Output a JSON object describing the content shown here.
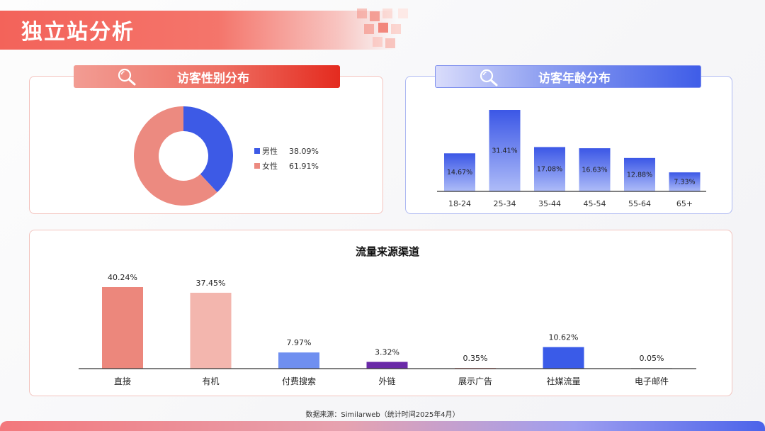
{
  "page": {
    "title": "独立站分析",
    "source_note": "数据来源：Similarweb（统计时间2025年4月）"
  },
  "colors": {
    "accent_red": "#f3635a",
    "accent_blue": "#3f5de8",
    "male": "#3d5ae6",
    "female": "#ec8a80"
  },
  "sections": {
    "gender_title": "访客性别分布",
    "age_title": "访客年龄分布",
    "traffic_title": "流量来源渠道"
  },
  "icons": {
    "header_icon": "search-icon"
  },
  "chart_data": [
    {
      "id": "gender",
      "type": "pie",
      "donut": true,
      "title": "",
      "series": [
        {
          "name": "男性",
          "value": 38.09,
          "label": "38.09%",
          "color": "#3d5ae6"
        },
        {
          "name": "女性",
          "value": 61.91,
          "label": "61.91%",
          "color": "#ec8a80"
        }
      ],
      "legend": "right"
    },
    {
      "id": "age",
      "type": "bar",
      "title": "",
      "categories": [
        "18-24",
        "25-34",
        "35-44",
        "45-54",
        "55-64",
        "65+"
      ],
      "values": [
        14.67,
        31.41,
        17.08,
        16.63,
        12.88,
        7.33
      ],
      "labels": [
        "14.67%",
        "31.41%",
        "17.08%",
        "16.63%",
        "12.88%",
        "7.33%"
      ],
      "ylim": [
        0,
        31.41
      ],
      "grid": false,
      "xlabel": "",
      "ylabel": ""
    },
    {
      "id": "traffic",
      "type": "bar",
      "title": "流量来源渠道",
      "categories": [
        "直接",
        "有机",
        "付费搜索",
        "外链",
        "展示广告",
        "社媒流量",
        "电子邮件"
      ],
      "values": [
        40.24,
        37.45,
        7.97,
        3.32,
        0.35,
        10.62,
        0.05
      ],
      "labels": [
        "40.24%",
        "37.45%",
        "7.97%",
        "3.32%",
        "0.35%",
        "10.62%",
        "0.05%"
      ],
      "colors": [
        "#ec877c",
        "#f3b6ae",
        "#6f8ff0",
        "#6a2aa8",
        "#f29a90",
        "#3a5be8",
        "#d9d9d9"
      ],
      "ylim": [
        0,
        40.24
      ],
      "grid": false,
      "xlabel": "",
      "ylabel": ""
    }
  ]
}
